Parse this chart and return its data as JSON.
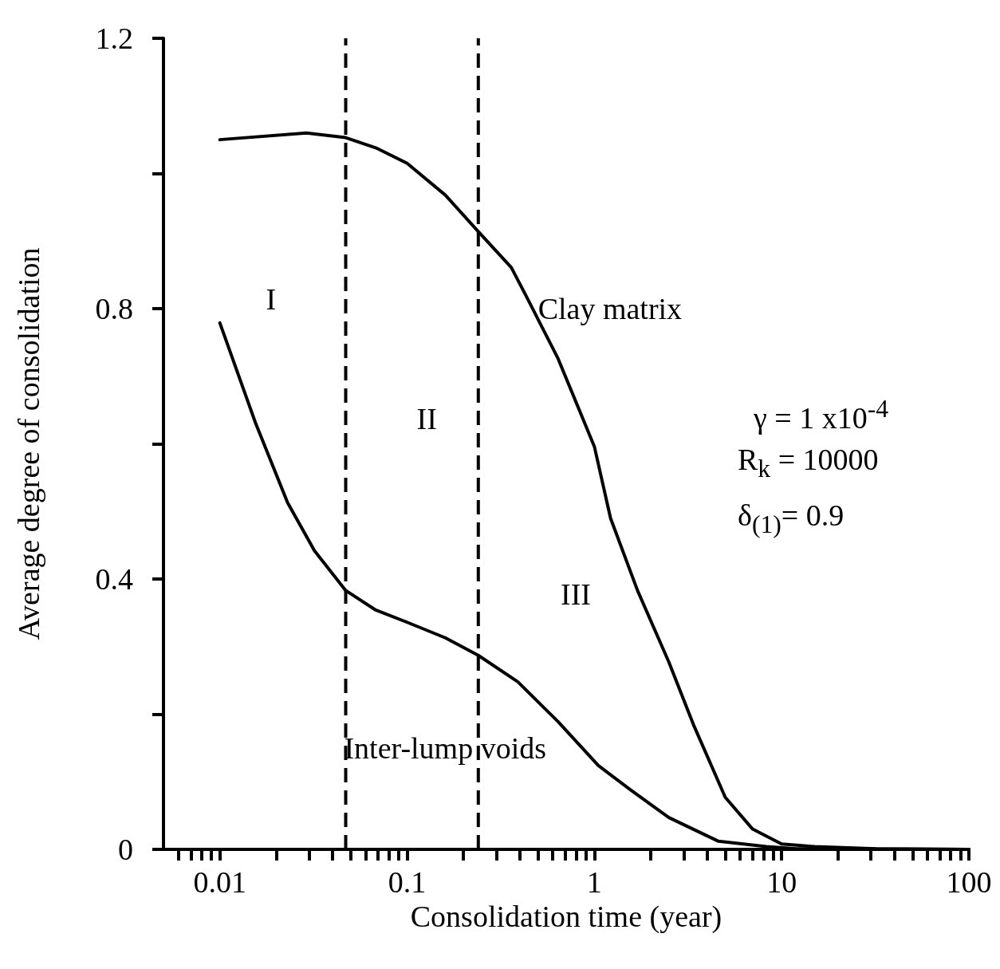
{
  "chart_data": {
    "type": "line",
    "xlabel": "Consolidation time (year)",
    "ylabel": "Average degree of consolidation",
    "log": "x",
    "xlim": [
      0.005,
      100
    ],
    "ylim": [
      0,
      1.2
    ],
    "xticks": [
      {
        "value": 0.006,
        "label": null
      },
      {
        "value": 0.007,
        "label": null
      },
      {
        "value": 0.008,
        "label": null
      },
      {
        "value": 0.009,
        "label": null
      },
      0.01,
      {
        "value": 0.02,
        "label": null
      },
      {
        "value": 0.03,
        "label": null
      },
      {
        "value": 0.04,
        "label": null
      },
      {
        "value": 0.05,
        "label": null
      },
      {
        "value": 0.06,
        "label": null
      },
      {
        "value": 0.07,
        "label": null
      },
      {
        "value": 0.08,
        "label": null
      },
      {
        "value": 0.09,
        "label": null
      },
      0.1,
      {
        "value": 0.2,
        "label": null
      },
      {
        "value": 0.3,
        "label": null
      },
      {
        "value": 0.4,
        "label": null
      },
      {
        "value": 0.5,
        "label": null
      },
      {
        "value": 0.6,
        "label": null
      },
      {
        "value": 0.7,
        "label": null
      },
      {
        "value": 0.8,
        "label": null
      },
      {
        "value": 0.9,
        "label": null
      },
      1,
      {
        "value": 2,
        "label": null
      },
      {
        "value": 3,
        "label": null
      },
      {
        "value": 4,
        "label": null
      },
      {
        "value": 5,
        "label": null
      },
      {
        "value": 6,
        "label": null
      },
      {
        "value": 7,
        "label": null
      },
      {
        "value": 8,
        "label": null
      },
      {
        "value": 9,
        "label": null
      },
      10,
      {
        "value": 20,
        "label": null
      },
      {
        "value": 30,
        "label": null
      },
      {
        "value": 40,
        "label": null
      },
      {
        "value": 50,
        "label": null
      },
      {
        "value": 60,
        "label": null
      },
      {
        "value": 70,
        "label": null
      },
      {
        "value": 80,
        "label": null
      },
      {
        "value": 90,
        "label": null
      },
      100
    ],
    "yticks": [
      0,
      {
        "value": 0.2,
        "label": null
      },
      0.4,
      {
        "value": 0.6,
        "label": null
      },
      0.8,
      {
        "value": 1.0,
        "label": null
      },
      1.2
    ],
    "grid": false,
    "legend": false,
    "marker": "none",
    "line_style": "solid",
    "series": [
      {
        "name": "Clay matrix",
        "color": "#000000",
        "x": [
          0.01,
          0.029,
          0.047,
          0.068,
          0.1,
          0.16,
          0.24,
          0.36,
          0.43,
          0.64,
          1,
          1.22,
          1.7,
          2.5,
          3.4,
          5,
          7,
          10,
          15,
          32,
          100
        ],
        "values": [
          1.05,
          1.06,
          1.053,
          1.038,
          1.015,
          0.968,
          0.914,
          0.861,
          0.82,
          0.726,
          0.596,
          0.49,
          0.383,
          0.277,
          0.183,
          0.077,
          0.03,
          0.008,
          0.004,
          0.001,
          0
        ]
      },
      {
        "name": "Inter-lump voids",
        "color": "#000000",
        "x": [
          0.01,
          0.0155,
          0.023,
          0.032,
          0.047,
          0.068,
          0.1,
          0.16,
          0.24,
          0.39,
          0.64,
          1.05,
          1.56,
          2.5,
          4.6,
          8.3,
          12,
          100
        ],
        "values": [
          0.779,
          0.631,
          0.513,
          0.442,
          0.383,
          0.354,
          0.336,
          0.313,
          0.287,
          0.248,
          0.189,
          0.124,
          0.088,
          0.047,
          0.012,
          0.004,
          0.001,
          0
        ]
      }
    ],
    "ref_lines": [
      {
        "axis": "x",
        "value": 0.047,
        "color": "#000000",
        "line_style": "dashed"
      },
      {
        "axis": "x",
        "value": 0.24,
        "color": "#000000",
        "line_style": "dashed"
      }
    ],
    "annotations": [
      "I",
      "II",
      "III",
      "γ = 1 x10$^{-4}$",
      "R$_{k}$ = 10000",
      "δ$_{(1)}$= 0.9"
    ]
  }
}
